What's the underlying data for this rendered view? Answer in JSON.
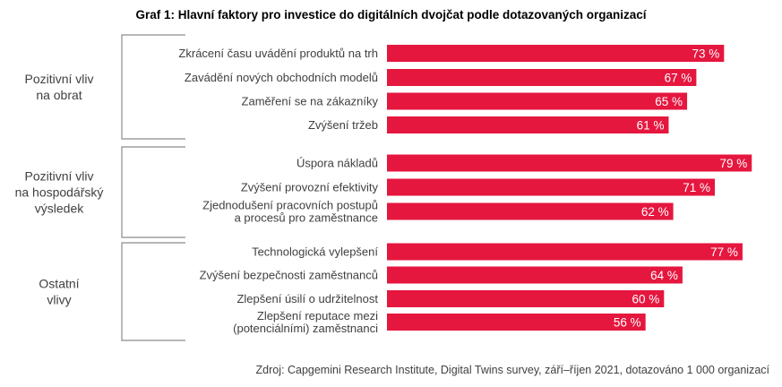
{
  "title": "Graf 1: Hlavní faktory pro investice do digitálních dvojčat podle dotazovaných organizací",
  "source": "Zdroj: Capgemini Research Institute, Digital Twins survey, září–říjen 2021, dotazováno 1 000 organizací",
  "colors": {
    "bar": "#e5173f",
    "bracket": "#8c8c8c"
  },
  "chart_data": {
    "type": "bar",
    "orientation": "horizontal",
    "unit": "%",
    "groups": [
      {
        "label": [
          "Pozitivní vliv",
          "na obrat"
        ],
        "items": [
          {
            "label": [
              "Zkrácení času uvádění produktů na trh"
            ],
            "value": 73
          },
          {
            "label": [
              "Zavádění nových obchodních modelů"
            ],
            "value": 67
          },
          {
            "label": [
              "Zaměření se na zákazníky"
            ],
            "value": 65
          },
          {
            "label": [
              "Zvýšení tržeb"
            ],
            "value": 61
          }
        ]
      },
      {
        "label": [
          "Pozitivní vliv",
          "na hospodářský",
          "výsledek"
        ],
        "items": [
          {
            "label": [
              "Úspora nákladů"
            ],
            "value": 79
          },
          {
            "label": [
              "Zvýšení provozní efektivity"
            ],
            "value": 71
          },
          {
            "label": [
              "Zjednodušení pracovních postupů",
              "a procesů pro zaměstnance"
            ],
            "value": 62
          }
        ]
      },
      {
        "label": [
          "Ostatní",
          "vlivy"
        ],
        "items": [
          {
            "label": [
              "Technologická vylepšení"
            ],
            "value": 77
          },
          {
            "label": [
              "Zvýšení bezpečnosti zaměstnanců"
            ],
            "value": 64
          },
          {
            "label": [
              "Zlepšení úsilí o udržitelnost"
            ],
            "value": 60
          },
          {
            "label": [
              "Zlepšení reputace mezi",
              "(potenciálními) zaměstnanci"
            ],
            "value": 56
          }
        ]
      }
    ]
  }
}
